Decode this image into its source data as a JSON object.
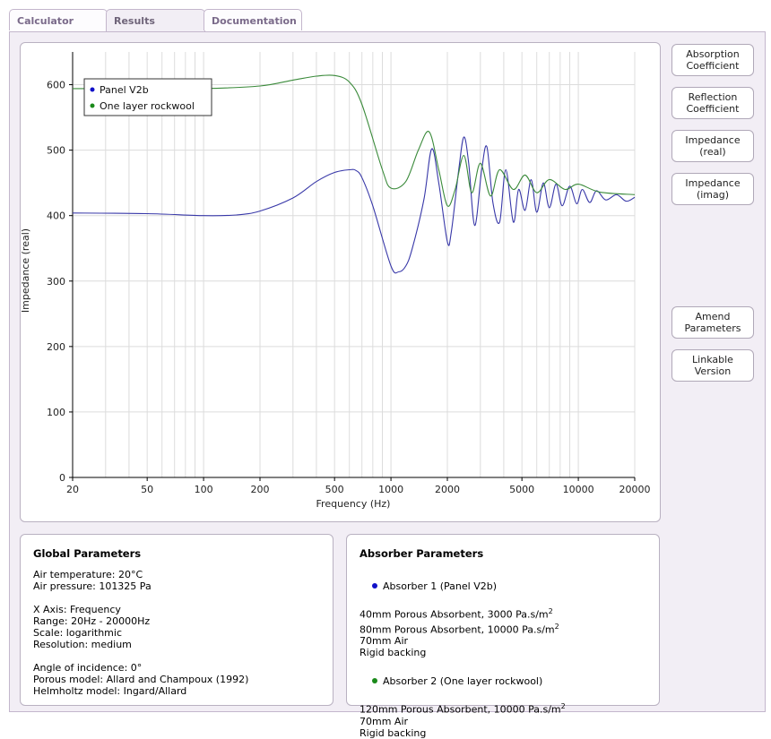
{
  "tabs": [
    {
      "label": "Calculator",
      "active": false
    },
    {
      "label": "Results",
      "active": true
    },
    {
      "label": "Documentation",
      "active": false
    }
  ],
  "buttons": [
    {
      "label": "Absorption\nCoefficient"
    },
    {
      "label": "Reflection\nCoefficient"
    },
    {
      "label": "Impedance\n(real)"
    },
    {
      "label": "Impedance\n(imag)"
    },
    {
      "label": "Amend\nParameters"
    },
    {
      "label": "Linkable\nVersion"
    }
  ],
  "global_params": {
    "title": "Global Parameters",
    "air_temperature": "Air temperature: 20°C",
    "air_pressure": "Air pressure: 101325 Pa",
    "x_axis": "X Axis: Frequency",
    "range": "Range: 20Hz - 20000Hz",
    "scale": "Scale: logarithmic",
    "resolution": "Resolution: medium",
    "angle": "Angle of incidence: 0°",
    "porous_model": "Porous model: Allard and Champoux (1992)",
    "helmholtz_model": "Helmholtz model: Ingard/Allard"
  },
  "absorber_params": {
    "title": "Absorber Parameters",
    "absorber1": {
      "heading": "Absorber 1 (Panel V2b)",
      "color": "#1010c8",
      "layer1_text": "40mm Porous Absorbent, 3000 Pa.s/m",
      "layer2_text": "80mm Porous Absorbent, 10000 Pa.s/m",
      "layer3": "70mm Air",
      "backing": "Rigid backing"
    },
    "absorber2": {
      "heading": "Absorber 2 (One layer rockwool)",
      "color": "#1a8a1a",
      "layer1_text": "120mm Porous Absorbent, 10000 Pa.s/m",
      "layer2": "70mm Air",
      "backing": "Rigid backing"
    },
    "unit_exponent": "2"
  },
  "chart_data": {
    "type": "line",
    "xlabel": "Frequency (Hz)",
    "ylabel": "Impedance (real)",
    "xscale": "log",
    "xlim": [
      20,
      20000
    ],
    "ylim": [
      0,
      650
    ],
    "xticks": [
      20,
      50,
      100,
      200,
      500,
      1000,
      2000,
      5000,
      10000,
      20000
    ],
    "yticks": [
      0,
      100,
      200,
      300,
      400,
      500,
      600
    ],
    "grid": true,
    "legend_position": "top-left",
    "series": [
      {
        "name": "Panel V2b",
        "color": "#3838a8",
        "x": [
          20,
          50,
          100,
          150,
          200,
          300,
          400,
          500,
          600,
          650,
          700,
          800,
          1000,
          1100,
          1200,
          1300,
          1500,
          1650,
          1800,
          2000,
          2100,
          2300,
          2450,
          2600,
          2800,
          3050,
          3250,
          3500,
          3800,
          4100,
          4500,
          4800,
          5200,
          5600,
          6000,
          6500,
          7000,
          7600,
          8200,
          9000,
          9800,
          10500,
          11500,
          12500,
          14000,
          16000,
          18000,
          20000
        ],
        "values": [
          404,
          403,
          400,
          401,
          407,
          427,
          452,
          466,
          470,
          469,
          458,
          415,
          323,
          314,
          323,
          350,
          425,
          502,
          450,
          360,
          375,
          470,
          520,
          480,
          385,
          470,
          505,
          420,
          390,
          470,
          390,
          440,
          408,
          455,
          405,
          450,
          412,
          448,
          415,
          445,
          418,
          440,
          420,
          438,
          424,
          432,
          422,
          428
        ]
      },
      {
        "name": "One layer rockwool",
        "color": "#3a8a3a",
        "x": [
          20,
          50,
          100,
          200,
          300,
          400,
          500,
          600,
          700,
          900,
          1000,
          1200,
          1400,
          1600,
          1800,
          2000,
          2200,
          2450,
          2700,
          3000,
          3400,
          3800,
          4500,
          5200,
          6000,
          7000,
          8500,
          10000,
          13000,
          20000
        ],
        "values": [
          594,
          594,
          594,
          598,
          607,
          613,
          614,
          604,
          570,
          470,
          442,
          452,
          500,
          528,
          470,
          415,
          440,
          492,
          435,
          480,
          430,
          470,
          440,
          462,
          435,
          455,
          440,
          448,
          436,
          432
        ]
      }
    ]
  }
}
